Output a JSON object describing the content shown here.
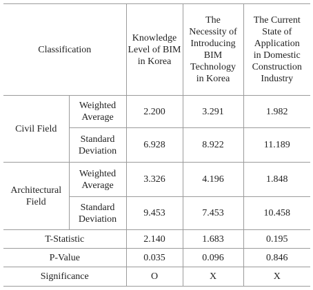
{
  "table": {
    "header": {
      "classification": "Classification",
      "columns": [
        [
          "Knowledge",
          "Level of BIM",
          "in Korea"
        ],
        [
          "The",
          "Necessity of",
          "Introducing",
          "BIM",
          "Technology",
          "in Korea"
        ],
        [
          "The Current",
          "State of",
          "Application",
          "in Domestic",
          "Construction",
          "Industry"
        ]
      ]
    },
    "groups": [
      {
        "label": [
          "Civil Field"
        ],
        "rows": [
          {
            "label": [
              "Weighted",
              "Average"
            ],
            "values": [
              "2.200",
              "3.291",
              "1.982"
            ]
          },
          {
            "label": [
              "Standard",
              "Deviation"
            ],
            "values": [
              "6.928",
              "8.922",
              "11.189"
            ]
          }
        ]
      },
      {
        "label": [
          "Architectural",
          "Field"
        ],
        "rows": [
          {
            "label": [
              "Weighted",
              "Average"
            ],
            "values": [
              "3.326",
              "4.196",
              "1.848"
            ]
          },
          {
            "label": [
              "Standard",
              "Deviation"
            ],
            "values": [
              "9.453",
              "7.453",
              "10.458"
            ]
          }
        ]
      }
    ],
    "summary": [
      {
        "label": "T-Statistic",
        "values": [
          "2.140",
          "1.683",
          "0.195"
        ]
      },
      {
        "label": "P-Value",
        "values": [
          "0.035",
          "0.096",
          "0.846"
        ]
      },
      {
        "label": "Significance",
        "values": [
          "O",
          "X",
          "X"
        ]
      }
    ]
  }
}
